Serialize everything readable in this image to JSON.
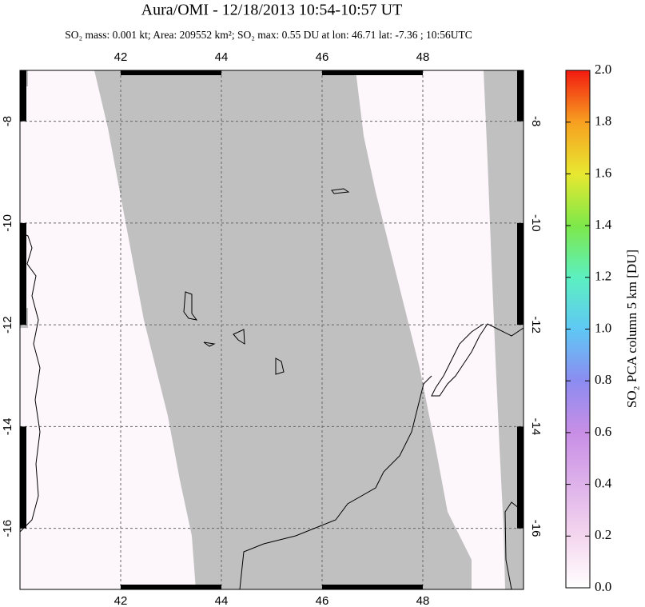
{
  "title": "Aura/OMI - 12/18/2013 10:54-10:57 UT",
  "subtitle": "SO₂ mass: 0.001 kt; Area: 209552 km²; SO₂ max: 0.55 DU at lon: 46.71 lat: -7.36 ; 10:56UTC",
  "map": {
    "xlim": [
      40,
      50
    ],
    "ylim": [
      -17.2,
      -7
    ],
    "xticks": [
      42,
      44,
      46,
      48
    ],
    "yticks": [
      -16,
      -14,
      -12,
      -10,
      -8
    ]
  },
  "colorbar": {
    "label": "SO₂ PCA column 5 km [DU]",
    "lim": [
      0,
      2
    ],
    "ticks": [
      {
        "value": 0,
        "label": "0.0"
      },
      {
        "value": 0.2,
        "label": "0.2"
      },
      {
        "value": 0.4,
        "label": "0.4"
      },
      {
        "value": 0.6,
        "label": "0.6"
      },
      {
        "value": 0.8,
        "label": "0.8"
      },
      {
        "value": 1,
        "label": "1.0"
      },
      {
        "value": 1.2,
        "label": "1.2"
      },
      {
        "value": 1.4,
        "label": "1.4"
      },
      {
        "value": 1.6,
        "label": "1.6"
      },
      {
        "value": 1.8,
        "label": "1.8"
      },
      {
        "value": 2,
        "label": "2.0"
      }
    ]
  }
}
